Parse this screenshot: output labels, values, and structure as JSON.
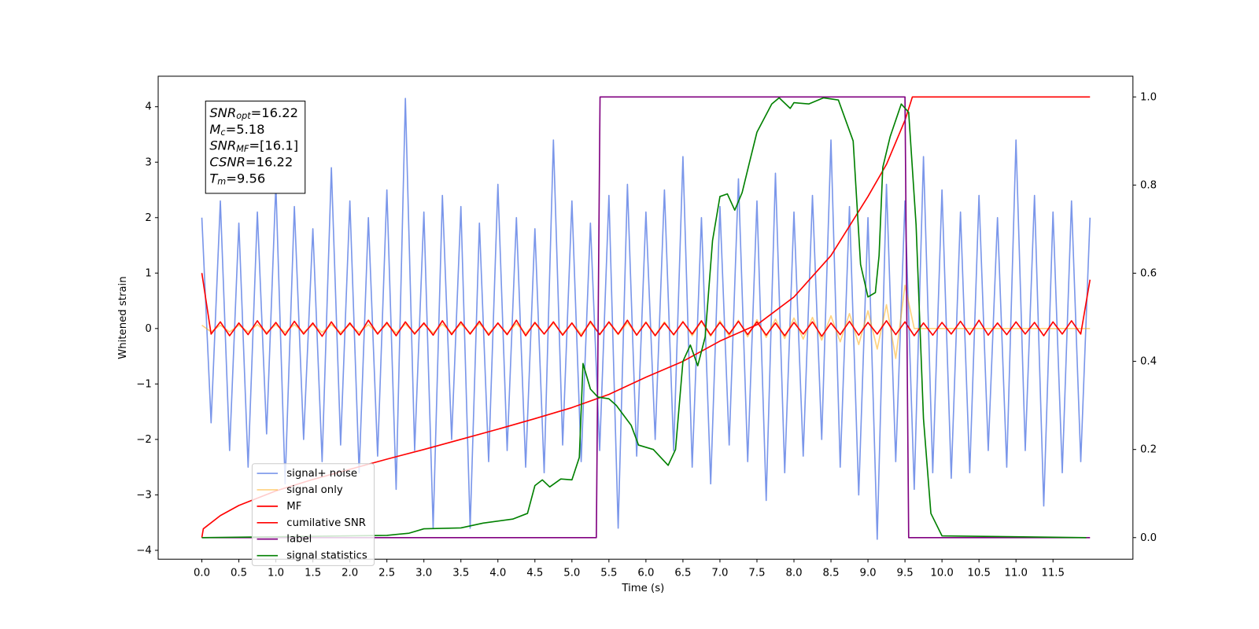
{
  "chart_data": {
    "type": "line",
    "xlabel": "Time (s)",
    "ylabel": "Whitened strain",
    "xlim": [
      -0.59,
      12.58
    ],
    "ylim": [
      -4.16,
      4.55
    ],
    "y2lim": [
      -0.049,
      1.047
    ],
    "xticks": [
      {
        "value": 0,
        "label": "0.0"
      },
      0.5,
      {
        "value": 1,
        "label": "1.0"
      },
      1.5,
      {
        "value": 2,
        "label": "2.0"
      },
      2.5,
      {
        "value": 3,
        "label": "3.0"
      },
      3.5,
      {
        "value": 4,
        "label": "4.0"
      },
      4.5,
      {
        "value": 5,
        "label": "5.0"
      },
      5.5,
      {
        "value": 6,
        "label": "6.0"
      },
      6.5,
      {
        "value": 7,
        "label": "7.0"
      },
      7.5,
      {
        "value": 8,
        "label": "8.0"
      },
      8.5,
      {
        "value": 9,
        "label": "9.0"
      },
      9.5,
      {
        "value": 10,
        "label": "10.0"
      },
      10.5,
      {
        "value": 11,
        "label": "11.0"
      },
      11.5
    ],
    "yticks": [
      {
        "value": -4,
        "label": "−4"
      },
      {
        "value": -3,
        "label": "−3"
      },
      {
        "value": -2,
        "label": "−2"
      },
      {
        "value": -1,
        "label": "−1"
      },
      0,
      1,
      2,
      3,
      4
    ],
    "y2ticks": [
      {
        "value": 0,
        "label": "0.0"
      },
      0.2,
      0.4,
      0.6,
      0.8,
      {
        "value": 1,
        "label": "1.0"
      }
    ],
    "legend_loc": "lower left",
    "textbox": [
      {
        "var": "SNR",
        "sub": "opt",
        "text": "=16.22"
      },
      {
        "var": "M",
        "sub": "c",
        "text": "=5.18"
      },
      {
        "var": "SNR",
        "sub": "MF",
        "text": "=[16.1]"
      },
      {
        "var": "CSNR",
        "sub": null,
        "text": "=16.22"
      },
      {
        "var": "T",
        "sub": "m",
        "text": "=9.56"
      }
    ],
    "x": [
      0,
      0.125,
      0.25,
      0.375,
      0.5,
      0.625,
      0.75,
      0.875,
      1,
      1.125,
      1.25,
      1.375,
      1.5,
      1.625,
      1.75,
      1.875,
      2,
      2.125,
      2.25,
      2.375,
      2.5,
      2.625,
      2.75,
      2.875,
      3,
      3.125,
      3.25,
      3.375,
      3.5,
      3.625,
      3.75,
      3.875,
      4,
      4.125,
      4.25,
      4.375,
      4.5,
      4.625,
      4.75,
      4.875,
      5,
      5.125,
      5.25,
      5.375,
      5.5,
      5.625,
      5.75,
      5.875,
      6,
      6.125,
      6.25,
      6.375,
      6.5,
      6.625,
      6.75,
      6.875,
      7,
      7.125,
      7.25,
      7.375,
      7.5,
      7.625,
      7.75,
      7.875,
      8,
      8.125,
      8.25,
      8.375,
      8.5,
      8.625,
      8.75,
      8.875,
      9,
      9.125,
      9.25,
      9.375,
      9.5,
      9.625,
      9.75,
      9.875,
      10,
      10.125,
      10.25,
      10.375,
      10.5,
      10.625,
      10.75,
      10.875,
      11,
      11.125,
      11.25,
      11.375,
      11.5,
      11.625,
      11.75,
      11.875,
      12
    ],
    "series": [
      {
        "name": "signal+ noise",
        "color": "#4169e1",
        "alpha": 0.7,
        "axis": "y",
        "values": [
          2.0,
          -1.7,
          2.3,
          -2.2,
          1.9,
          -2.5,
          2.1,
          -1.9,
          2.6,
          -2.8,
          2.2,
          -2.0,
          1.8,
          -2.4,
          2.9,
          -2.1,
          2.3,
          -2.6,
          2.0,
          -2.3,
          2.5,
          -2.9,
          4.15,
          -2.2,
          2.1,
          -3.6,
          2.4,
          -2.0,
          2.2,
          -3.6,
          1.9,
          -2.4,
          2.6,
          -2.2,
          2.0,
          -2.5,
          1.8,
          -2.6,
          3.4,
          -2.1,
          2.3,
          -2.4,
          1.9,
          -2.2,
          2.4,
          -3.6,
          2.6,
          -2.3,
          2.1,
          -2.0,
          2.5,
          -2.2,
          3.1,
          -2.5,
          2.0,
          -2.8,
          2.2,
          -2.1,
          2.7,
          -2.4,
          2.3,
          -3.1,
          2.8,
          -2.6,
          2.1,
          -2.3,
          2.4,
          -2.0,
          3.4,
          -2.5,
          2.2,
          -3.0,
          2.0,
          -3.8,
          2.6,
          -2.4,
          2.3,
          -2.9,
          3.1,
          -2.6,
          2.5,
          -2.7,
          2.1,
          -2.6,
          2.4,
          -2.2,
          2.0,
          -2.5,
          3.4,
          -2.2,
          2.4,
          -3.2,
          2.1,
          -2.6,
          2.3,
          -2.4,
          2.0
        ]
      },
      {
        "name": "signal only",
        "color": "#ffa500",
        "alpha": 0.5,
        "axis": "y",
        "values": [
          0.06,
          -0.06,
          0.06,
          -0.06,
          0.06,
          -0.06,
          0.07,
          -0.07,
          0.07,
          -0.07,
          0.07,
          -0.07,
          0.07,
          -0.07,
          0.07,
          -0.07,
          0.07,
          -0.07,
          0.07,
          -0.08,
          0.08,
          -0.08,
          0.08,
          -0.08,
          0.08,
          -0.08,
          0.08,
          -0.08,
          0.08,
          -0.08,
          0.09,
          -0.09,
          0.09,
          -0.09,
          0.09,
          -0.09,
          0.09,
          -0.1,
          0.1,
          -0.1,
          0.1,
          -0.1,
          0.1,
          -0.1,
          0.11,
          -0.11,
          0.11,
          -0.11,
          0.12,
          -0.12,
          0.12,
          -0.12,
          0.13,
          -0.13,
          0.13,
          -0.14,
          0.14,
          -0.14,
          0.15,
          -0.15,
          0.16,
          -0.16,
          0.17,
          -0.18,
          0.19,
          -0.19,
          0.2,
          -0.21,
          0.23,
          -0.24,
          0.27,
          -0.29,
          0.32,
          -0.37,
          0.43,
          -0.54,
          0.78,
          0,
          0,
          0,
          0,
          0,
          0,
          0,
          0,
          0,
          0,
          0,
          0,
          0,
          0,
          0,
          0,
          0,
          0,
          0,
          0
        ]
      },
      {
        "name": "MF",
        "color": "#ff0000",
        "alpha": 1,
        "axis": "y",
        "values": [
          1.0,
          -0.1,
          0.12,
          -0.13,
          0.1,
          -0.11,
          0.14,
          -0.1,
          0.11,
          -0.12,
          0.13,
          -0.1,
          0.1,
          -0.14,
          0.12,
          -0.11,
          0.1,
          -0.12,
          0.15,
          -0.1,
          0.11,
          -0.13,
          0.12,
          -0.1,
          0.1,
          -0.12,
          0.14,
          -0.11,
          0.12,
          -0.1,
          0.13,
          -0.12,
          0.1,
          -0.11,
          0.15,
          -0.13,
          0.11,
          -0.1,
          0.12,
          -0.12,
          0.1,
          -0.14,
          0.13,
          -0.11,
          0.12,
          -0.1,
          0.15,
          -0.12,
          0.11,
          -0.13,
          0.1,
          -0.11,
          0.12,
          -0.1,
          0.14,
          -0.12,
          0.11,
          -0.1,
          0.13,
          -0.11,
          0.12,
          -0.12,
          0.1,
          -0.13,
          0.11,
          -0.1,
          0.12,
          -0.14,
          0.1,
          -0.11,
          0.13,
          -0.12,
          0.11,
          -0.1,
          0.14,
          -0.11,
          0.12,
          -0.13,
          0.1,
          -0.12,
          0.11,
          -0.1,
          0.13,
          -0.11,
          0.15,
          -0.12,
          0.1,
          -0.11,
          0.12,
          -0.1,
          0.11,
          -0.13,
          0.12,
          -0.1,
          0.14,
          -0.1,
          0.88
        ]
      },
      {
        "name": "cumilative SNR",
        "color": "#ff0000",
        "alpha": 1,
        "axis": "y2",
        "x": [
          0,
          0.02,
          0.25,
          0.5,
          1,
          1.5,
          2,
          2.5,
          3,
          3.5,
          4,
          4.5,
          5,
          5.5,
          6,
          6.5,
          7,
          7.5,
          8,
          8.5,
          9,
          9.25,
          9.5,
          9.6,
          12
        ],
        "values": [
          0,
          0.02,
          0.05,
          0.073,
          0.106,
          0.132,
          0.155,
          0.178,
          0.2,
          0.223,
          0.246,
          0.27,
          0.295,
          0.325,
          0.364,
          0.4,
          0.446,
          0.483,
          0.546,
          0.64,
          0.774,
          0.847,
          0.947,
          1.0,
          1.0
        ]
      },
      {
        "name": "label",
        "color": "#800080",
        "alpha": 1,
        "axis": "y2",
        "x": [
          0,
          5.33,
          5.38,
          9.5,
          9.55,
          12
        ],
        "values": [
          0,
          0,
          1,
          1,
          0,
          0
        ]
      },
      {
        "name": "signal statistics",
        "color": "#008000",
        "alpha": 1,
        "axis": "y2",
        "x": [
          0,
          2.5,
          2.8,
          3.0,
          3.5,
          3.8,
          4.2,
          4.4,
          4.5,
          4.6,
          4.7,
          4.85,
          5.0,
          5.1,
          5.15,
          5.25,
          5.35,
          5.5,
          5.6,
          5.8,
          5.9,
          6.1,
          6.3,
          6.4,
          6.5,
          6.6,
          6.7,
          6.8,
          6.9,
          7.0,
          7.1,
          7.2,
          7.3,
          7.4,
          7.5,
          7.7,
          7.8,
          7.95,
          8.0,
          8.2,
          8.4,
          8.6,
          8.8,
          8.9,
          9.0,
          9.1,
          9.15,
          9.2,
          9.3,
          9.45,
          9.55,
          9.65,
          9.75,
          9.85,
          10.0,
          11.95
        ],
        "values": [
          0,
          0.005,
          0.01,
          0.02,
          0.022,
          0.033,
          0.042,
          0.055,
          0.118,
          0.131,
          0.115,
          0.133,
          0.131,
          0.182,
          0.395,
          0.337,
          0.319,
          0.315,
          0.3,
          0.255,
          0.21,
          0.2,
          0.164,
          0.2,
          0.4,
          0.437,
          0.39,
          0.455,
          0.674,
          0.774,
          0.78,
          0.743,
          0.783,
          0.852,
          0.92,
          0.984,
          0.998,
          0.974,
          0.987,
          0.984,
          0.998,
          0.993,
          0.9,
          0.62,
          0.546,
          0.556,
          0.64,
          0.84,
          0.91,
          0.984,
          0.965,
          0.71,
          0.27,
          0.055,
          0.004,
          0
        ]
      }
    ]
  }
}
